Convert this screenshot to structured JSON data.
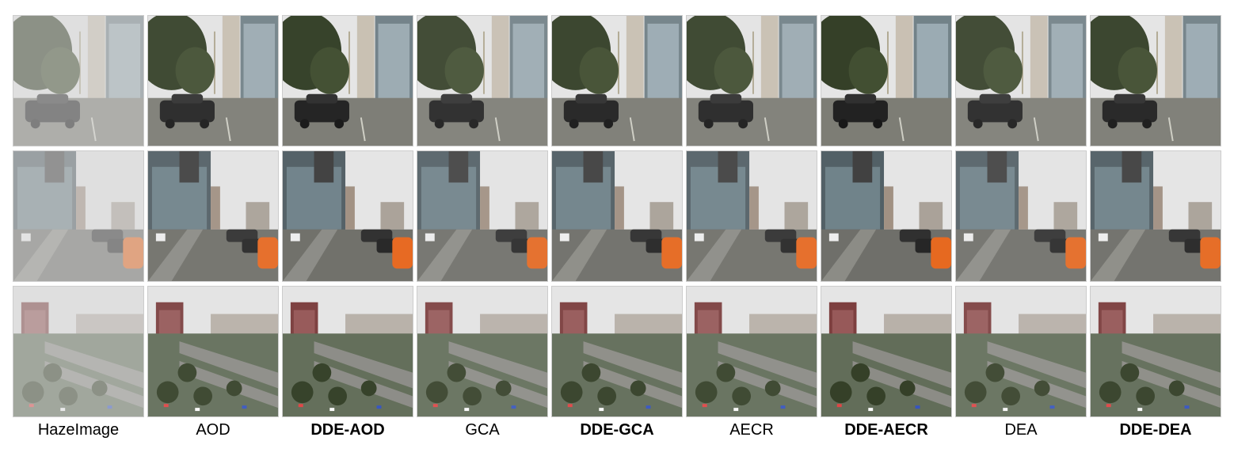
{
  "columns": [
    {
      "label": "HazeImage",
      "bold": false,
      "haze": 0.55
    },
    {
      "label": "AOD",
      "bold": false,
      "haze": 0.1
    },
    {
      "label": "DDE-AOD",
      "bold": true,
      "haze": 0.05
    },
    {
      "label": "GCA",
      "bold": false,
      "haze": 0.12
    },
    {
      "label": "DDE-GCA",
      "bold": true,
      "haze": 0.08
    },
    {
      "label": "AECR",
      "bold": false,
      "haze": 0.1
    },
    {
      "label": "DDE-AECR",
      "bold": true,
      "haze": 0.04
    },
    {
      "label": "DEA",
      "bold": false,
      "haze": 0.12
    },
    {
      "label": "DDE-DEA",
      "bold": true,
      "haze": 0.08
    }
  ],
  "rows": [
    "street-car-scene",
    "street-parking-scene",
    "city-overview-scene"
  ],
  "colors": {
    "haze": "#d8d8d8",
    "sky": "#e6e6e6",
    "tree": "#2f3b22",
    "building": "#8a8a8a",
    "road": "#7a7a72",
    "car": "#1c1c1c",
    "orange_car": "#e8651a",
    "tower": "#7a3a3a"
  }
}
